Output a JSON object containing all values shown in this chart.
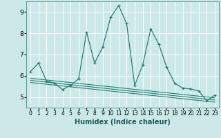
{
  "xlabel": "Humidex (Indice chaleur)",
  "bg_color": "#cce8e8",
  "grid_color": "#ffffff",
  "line_color": "#1a7a6e",
  "x_main": [
    0,
    1,
    2,
    3,
    4,
    5,
    6,
    7,
    8,
    9,
    10,
    11,
    12,
    13,
    14,
    15,
    16,
    17,
    18,
    19,
    20,
    21,
    22,
    23
  ],
  "y_main": [
    6.2,
    6.6,
    5.75,
    5.65,
    5.35,
    5.55,
    5.85,
    8.05,
    6.6,
    7.35,
    8.75,
    9.3,
    8.45,
    5.55,
    6.5,
    8.2,
    7.5,
    6.4,
    5.65,
    5.42,
    5.38,
    5.28,
    4.82,
    5.08
  ],
  "y_line1": [
    5.88,
    5.84,
    5.8,
    5.76,
    5.72,
    5.68,
    5.64,
    5.6,
    5.56,
    5.52,
    5.48,
    5.44,
    5.4,
    5.36,
    5.32,
    5.28,
    5.24,
    5.2,
    5.16,
    5.12,
    5.08,
    5.04,
    5.0,
    4.96
  ],
  "y_line2": [
    5.78,
    5.74,
    5.7,
    5.66,
    5.62,
    5.58,
    5.54,
    5.5,
    5.46,
    5.42,
    5.38,
    5.34,
    5.3,
    5.26,
    5.22,
    5.18,
    5.14,
    5.1,
    5.06,
    5.02,
    4.98,
    4.94,
    4.9,
    4.86
  ],
  "y_line3": [
    5.68,
    5.64,
    5.6,
    5.56,
    5.52,
    5.48,
    5.44,
    5.4,
    5.36,
    5.32,
    5.28,
    5.24,
    5.2,
    5.16,
    5.12,
    5.08,
    5.04,
    5.0,
    4.96,
    4.92,
    4.88,
    4.84,
    4.8,
    4.76
  ],
  "ylim": [
    4.5,
    9.5
  ],
  "xlim": [
    -0.5,
    23.5
  ],
  "yticks": [
    5,
    6,
    7,
    8,
    9
  ],
  "xticks": [
    0,
    1,
    2,
    3,
    4,
    5,
    6,
    7,
    8,
    9,
    10,
    11,
    12,
    13,
    14,
    15,
    16,
    17,
    18,
    19,
    20,
    21,
    22,
    23
  ]
}
